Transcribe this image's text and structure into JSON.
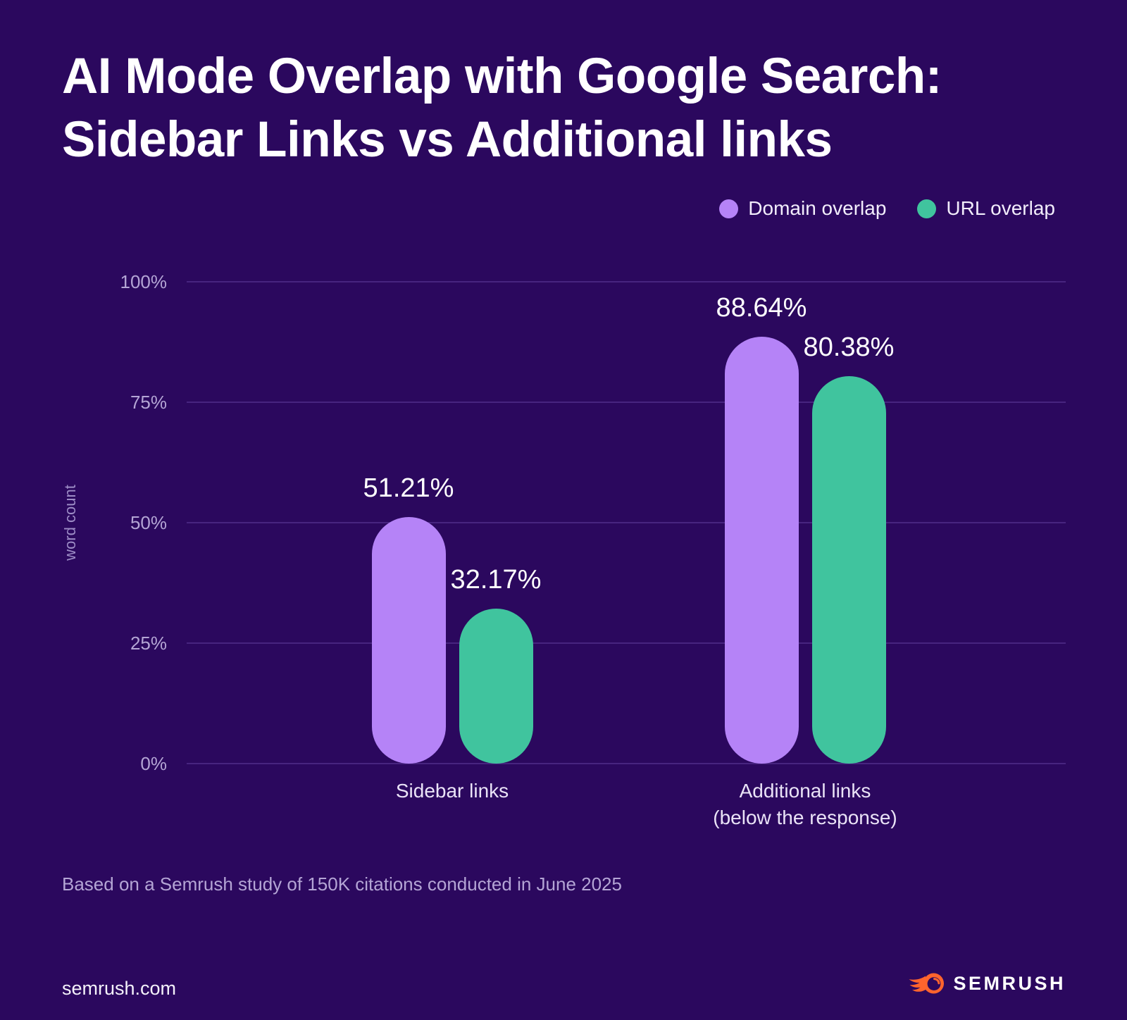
{
  "title": {
    "line1": "AI Mode Overlap with Google Search:",
    "line2": "Sidebar Links vs Additional links"
  },
  "legend": {
    "items": [
      {
        "label": "Domain overlap",
        "color": "#b583f7"
      },
      {
        "label": "URL overlap",
        "color": "#40c49e"
      }
    ]
  },
  "chart_data": {
    "type": "bar",
    "title": "AI Mode Overlap with Google Search: Sidebar Links vs Additional links",
    "ylabel": "word count",
    "xlabel": "",
    "ylim": [
      0,
      100
    ],
    "grid": true,
    "legend_position": "top-right",
    "yticks": [
      {
        "label": "100%",
        "value": 100
      },
      {
        "label": "75%",
        "value": 75
      },
      {
        "label": "50%",
        "value": 50
      },
      {
        "label": "25%",
        "value": 25
      },
      {
        "label": "0%",
        "value": 0
      }
    ],
    "categories": [
      {
        "lines": [
          "Sidebar links"
        ]
      },
      {
        "lines": [
          "Additional links",
          "(below the response)"
        ]
      }
    ],
    "series": [
      {
        "name": "Domain overlap",
        "color": "#b583f7",
        "values": [
          51.21,
          88.64
        ],
        "labels": [
          "51.21%",
          "88.64%"
        ]
      },
      {
        "name": "URL overlap",
        "color": "#40c49e",
        "values": [
          32.17,
          80.38
        ],
        "labels": [
          "32.17%",
          "80.38%"
        ]
      }
    ]
  },
  "footnote": "Based on a Semrush study of 150K citations conducted in June 2025",
  "footer": {
    "site": "semrush.com",
    "brand": "SEMRUSH"
  },
  "icons": {
    "brand_logo": "semrush-flame-icon",
    "legend_marker": "legend-dot-icon"
  },
  "colors": {
    "background": "#2b085e",
    "bar_purple": "#b583f7",
    "bar_green": "#40c49e",
    "grid": "rgba(171,138,245,0.22)",
    "tick_text": "#b4a5d5",
    "axis_title_text": "#9d8cc6",
    "category_text": "#eae3f7",
    "footnote_text": "#b4a5d5",
    "value_label_text": "#ffffff",
    "title_text": "#ffffff",
    "brand_orange": "#ff642d"
  }
}
